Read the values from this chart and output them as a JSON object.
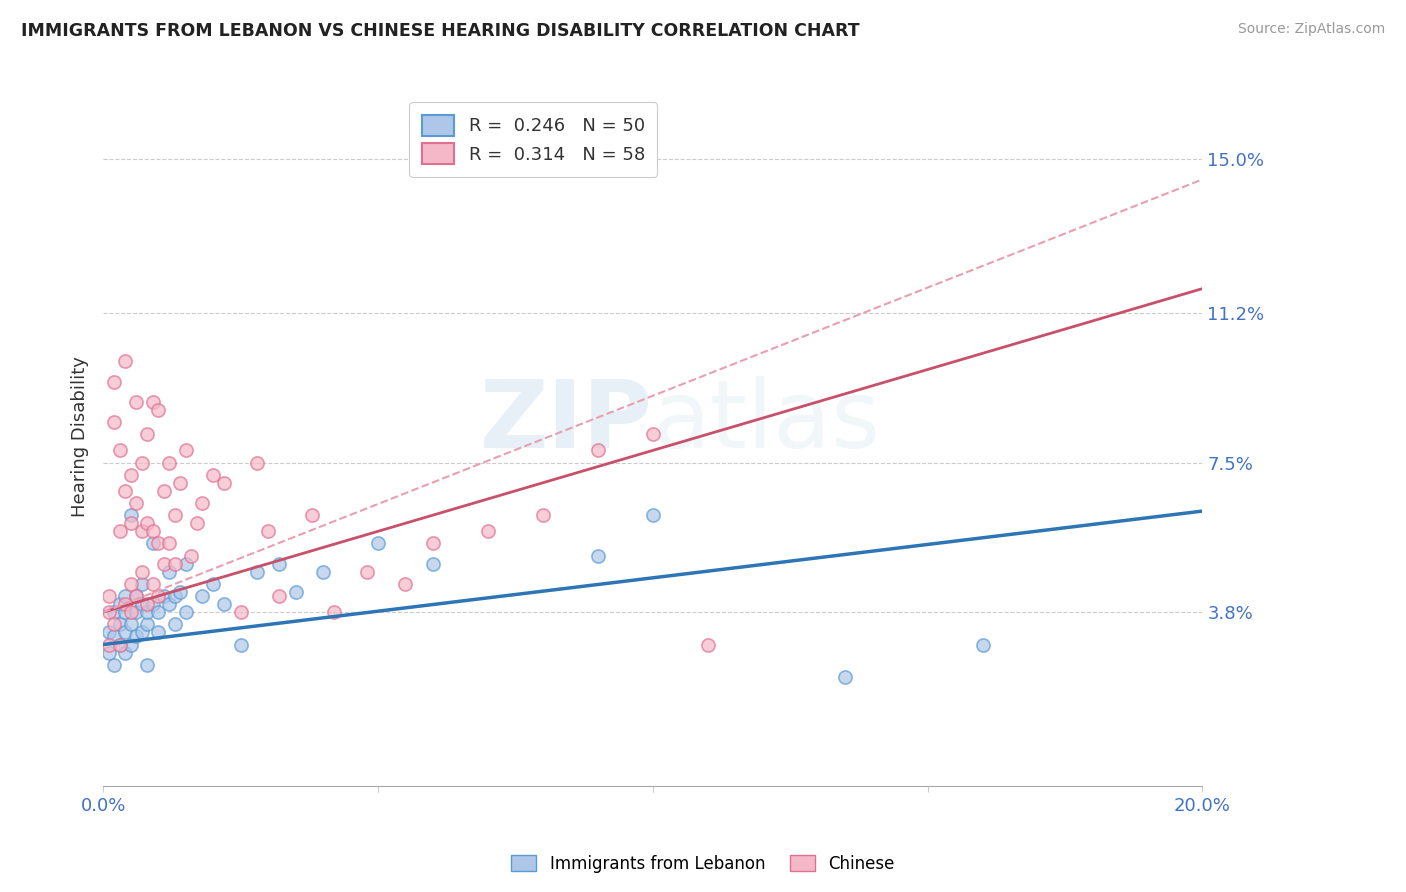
{
  "title": "IMMIGRANTS FROM LEBANON VS CHINESE HEARING DISABILITY CORRELATION CHART",
  "source": "Source: ZipAtlas.com",
  "ylabel": "Hearing Disability",
  "xlim": [
    0.0,
    0.2
  ],
  "ylim": [
    -0.005,
    0.168
  ],
  "ytick_labels": [
    "3.8%",
    "7.5%",
    "11.2%",
    "15.0%"
  ],
  "ytick_values": [
    0.038,
    0.075,
    0.112,
    0.15
  ],
  "blue_fill": "#aec6e8",
  "blue_edge": "#5b9bd5",
  "pink_fill": "#f4b8c8",
  "pink_edge": "#e07090",
  "blue_line_color": "#2e75b6",
  "pink_line_color": "#c9506a",
  "pink_dash_color": "#e8a0b0",
  "legend_R_blue": "0.246",
  "legend_N_blue": "50",
  "legend_R_pink": "0.314",
  "legend_N_pink": "58",
  "blue_scatter": [
    [
      0.001,
      0.033
    ],
    [
      0.001,
      0.028
    ],
    [
      0.002,
      0.032
    ],
    [
      0.002,
      0.025
    ],
    [
      0.002,
      0.038
    ],
    [
      0.003,
      0.03
    ],
    [
      0.003,
      0.035
    ],
    [
      0.003,
      0.04
    ],
    [
      0.004,
      0.028
    ],
    [
      0.004,
      0.033
    ],
    [
      0.004,
      0.038
    ],
    [
      0.004,
      0.042
    ],
    [
      0.005,
      0.03
    ],
    [
      0.005,
      0.035
    ],
    [
      0.005,
      0.062
    ],
    [
      0.006,
      0.032
    ],
    [
      0.006,
      0.038
    ],
    [
      0.006,
      0.042
    ],
    [
      0.007,
      0.033
    ],
    [
      0.007,
      0.04
    ],
    [
      0.007,
      0.045
    ],
    [
      0.008,
      0.035
    ],
    [
      0.008,
      0.038
    ],
    [
      0.008,
      0.025
    ],
    [
      0.009,
      0.04
    ],
    [
      0.009,
      0.055
    ],
    [
      0.01,
      0.033
    ],
    [
      0.01,
      0.038
    ],
    [
      0.011,
      0.042
    ],
    [
      0.012,
      0.04
    ],
    [
      0.012,
      0.048
    ],
    [
      0.013,
      0.042
    ],
    [
      0.013,
      0.035
    ],
    [
      0.014,
      0.043
    ],
    [
      0.015,
      0.05
    ],
    [
      0.015,
      0.038
    ],
    [
      0.018,
      0.042
    ],
    [
      0.02,
      0.045
    ],
    [
      0.022,
      0.04
    ],
    [
      0.025,
      0.03
    ],
    [
      0.028,
      0.048
    ],
    [
      0.032,
      0.05
    ],
    [
      0.035,
      0.043
    ],
    [
      0.04,
      0.048
    ],
    [
      0.05,
      0.055
    ],
    [
      0.06,
      0.05
    ],
    [
      0.09,
      0.052
    ],
    [
      0.1,
      0.062
    ],
    [
      0.135,
      0.022
    ],
    [
      0.16,
      0.03
    ]
  ],
  "pink_scatter": [
    [
      0.001,
      0.03
    ],
    [
      0.001,
      0.038
    ],
    [
      0.001,
      0.042
    ],
    [
      0.002,
      0.085
    ],
    [
      0.002,
      0.095
    ],
    [
      0.002,
      0.035
    ],
    [
      0.003,
      0.058
    ],
    [
      0.003,
      0.078
    ],
    [
      0.003,
      0.03
    ],
    [
      0.004,
      0.04
    ],
    [
      0.004,
      0.068
    ],
    [
      0.004,
      0.1
    ],
    [
      0.005,
      0.038
    ],
    [
      0.005,
      0.045
    ],
    [
      0.005,
      0.06
    ],
    [
      0.005,
      0.072
    ],
    [
      0.006,
      0.042
    ],
    [
      0.006,
      0.065
    ],
    [
      0.006,
      0.09
    ],
    [
      0.007,
      0.048
    ],
    [
      0.007,
      0.058
    ],
    [
      0.007,
      0.075
    ],
    [
      0.008,
      0.04
    ],
    [
      0.008,
      0.06
    ],
    [
      0.008,
      0.082
    ],
    [
      0.009,
      0.045
    ],
    [
      0.009,
      0.058
    ],
    [
      0.009,
      0.09
    ],
    [
      0.01,
      0.042
    ],
    [
      0.01,
      0.055
    ],
    [
      0.01,
      0.088
    ],
    [
      0.011,
      0.05
    ],
    [
      0.011,
      0.068
    ],
    [
      0.012,
      0.055
    ],
    [
      0.012,
      0.075
    ],
    [
      0.013,
      0.05
    ],
    [
      0.013,
      0.062
    ],
    [
      0.014,
      0.07
    ],
    [
      0.015,
      0.078
    ],
    [
      0.016,
      0.052
    ],
    [
      0.017,
      0.06
    ],
    [
      0.018,
      0.065
    ],
    [
      0.02,
      0.072
    ],
    [
      0.022,
      0.07
    ],
    [
      0.025,
      0.038
    ],
    [
      0.028,
      0.075
    ],
    [
      0.03,
      0.058
    ],
    [
      0.032,
      0.042
    ],
    [
      0.038,
      0.062
    ],
    [
      0.042,
      0.038
    ],
    [
      0.048,
      0.048
    ],
    [
      0.055,
      0.045
    ],
    [
      0.06,
      0.055
    ],
    [
      0.07,
      0.058
    ],
    [
      0.08,
      0.062
    ],
    [
      0.09,
      0.078
    ],
    [
      0.1,
      0.082
    ],
    [
      0.11,
      0.03
    ]
  ],
  "blue_line_points": [
    [
      0.0,
      0.03
    ],
    [
      0.2,
      0.063
    ]
  ],
  "pink_line_points": [
    [
      0.0,
      0.038
    ],
    [
      0.2,
      0.118
    ]
  ],
  "pink_dash_points": [
    [
      0.0,
      0.038
    ],
    [
      0.2,
      0.145
    ]
  ]
}
